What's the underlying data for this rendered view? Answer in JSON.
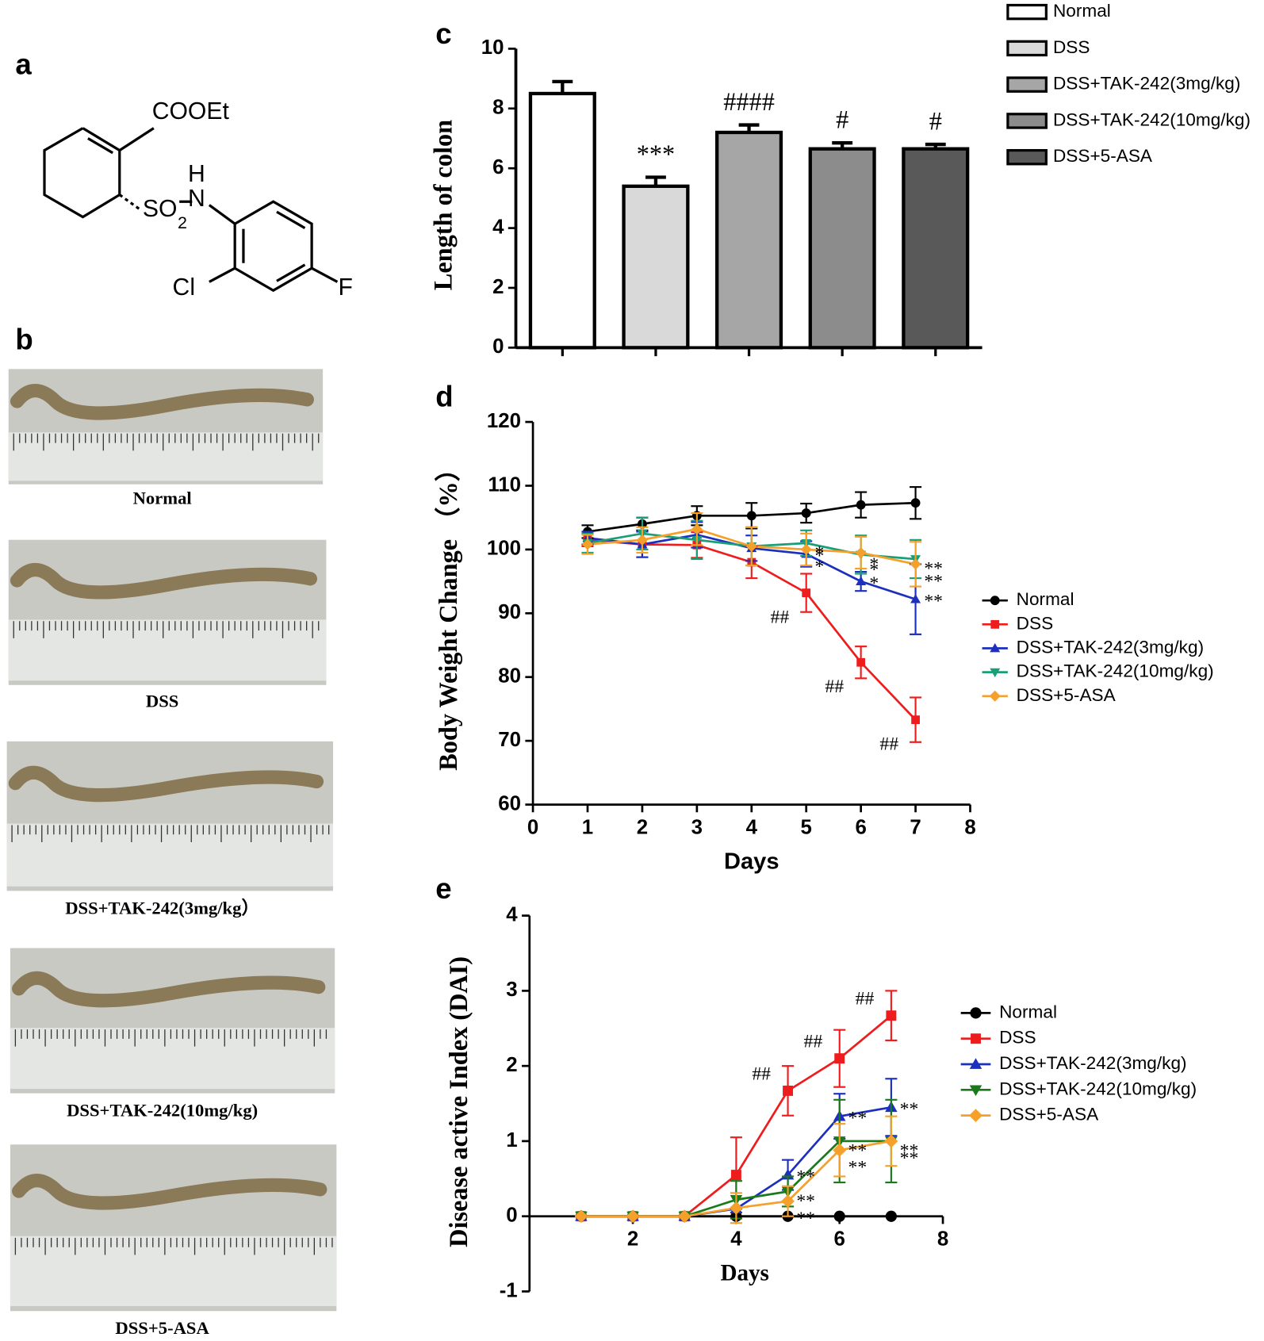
{
  "panel_labels": [
    "a",
    "b"
  ],
  "structure": {
    "labels": [
      "COOEt",
      "H",
      "N",
      "SO",
      "2",
      "Cl",
      "F"
    ]
  },
  "photos": [
    "Normal",
    "DSS",
    "DSS+TAK-242(3mg/kg）",
    "DSS+TAK-242(10mg/kg)",
    "DSS+5-ASA"
  ],
  "chart_data": [
    {
      "type": "bar",
      "panel": "c",
      "y_label": "Length of colon",
      "ylim": [
        0,
        10
      ],
      "yticks": [
        0,
        2,
        4,
        6,
        8,
        10
      ],
      "series": [
        {
          "name": "Normal",
          "color": "#ffffff",
          "values": [
            8.5
          ],
          "errors": [
            0.4
          ],
          "point_labels": [
            null
          ]
        },
        {
          "name": "DSS",
          "color": "#d9d9d9",
          "values": [
            5.4
          ],
          "errors": [
            0.3
          ],
          "point_labels": [
            "***"
          ]
        },
        {
          "name": "DSS+TAK-242(3mg/kg)",
          "color": "#a6a6a6",
          "values": [
            7.2
          ],
          "errors": [
            0.25
          ],
          "point_labels": [
            "####"
          ]
        },
        {
          "name": "DSS+TAK-242(10mg/kg)",
          "color": "#8c8c8c",
          "values": [
            6.65
          ],
          "errors": [
            0.2
          ],
          "point_labels": [
            "#"
          ]
        },
        {
          "name": "DSS+5-ASA",
          "color": "#595959",
          "values": [
            6.65
          ],
          "errors": [
            0.15
          ],
          "point_labels": [
            "#"
          ]
        }
      ]
    },
    {
      "type": "line",
      "panel": "d",
      "x_label": "Days",
      "y_label": "Body Weight Change （%）",
      "x": [
        1,
        2,
        3,
        4,
        5,
        6,
        7
      ],
      "xlim": [
        0,
        8
      ],
      "xticks": [
        0,
        1,
        2,
        3,
        4,
        5,
        6,
        7,
        8
      ],
      "ylim": [
        60,
        120
      ],
      "yticks": [
        60,
        70,
        80,
        90,
        100,
        110,
        120
      ],
      "series": [
        {
          "name": "Normal",
          "color": "#000000",
          "marker": "circle",
          "values": [
            102.8,
            104,
            105.3,
            105.3,
            105.7,
            107,
            107.3
          ],
          "errors": [
            1,
            1,
            1.5,
            2,
            1.5,
            2,
            2.5
          ],
          "point_labels": [
            null,
            null,
            null,
            null,
            null,
            null,
            null
          ]
        },
        {
          "name": "DSS",
          "color": "#ee1c1c",
          "marker": "square",
          "values": [
            101.5,
            100.8,
            100.7,
            98,
            93.2,
            82.3,
            73.3
          ],
          "errors": [
            1,
            2,
            2,
            2.5,
            3,
            2.5,
            3.5
          ],
          "point_labels": [
            null,
            null,
            null,
            null,
            "##",
            "##",
            "##"
          ]
        },
        {
          "name": "DSS+TAK-242(3mg/kg)",
          "color": "#1c2fbf",
          "marker": "triangle-up",
          "values": [
            101.8,
            100.8,
            102.3,
            100.2,
            99.3,
            95,
            92.2
          ],
          "errors": [
            1,
            2,
            2,
            2,
            2,
            1.5,
            5.5
          ],
          "point_labels": [
            null,
            null,
            null,
            null,
            "*",
            "*",
            "**"
          ]
        },
        {
          "name": "DSS+TAK-242(10mg/kg)",
          "color": "#1a9e77",
          "marker": "triangle-down",
          "values": [
            101,
            102.5,
            101.5,
            100.5,
            101,
            99.2,
            98.5
          ],
          "errors": [
            1.5,
            2.5,
            3,
            3,
            2,
            3,
            3
          ],
          "point_labels": [
            null,
            null,
            null,
            null,
            "*",
            "*",
            "**"
          ]
        },
        {
          "name": "DSS+5-ASA",
          "color": "#f5a02a",
          "marker": "diamond",
          "values": [
            100.8,
            101.5,
            103.2,
            100.5,
            100,
            99.5,
            97.7
          ],
          "errors": [
            1.5,
            2,
            2.5,
            3,
            2.5,
            2.5,
            3.5
          ],
          "point_labels": [
            null,
            null,
            null,
            null,
            "*",
            "*",
            "**"
          ]
        }
      ]
    },
    {
      "type": "line",
      "panel": "e",
      "x_label": "Days",
      "y_label": "Disease active Index (DAI)",
      "x": [
        1,
        2,
        3,
        4,
        5,
        6,
        7
      ],
      "xlim": [
        0,
        8
      ],
      "xticks": [
        2,
        4,
        6,
        8
      ],
      "ylim": [
        -1,
        4
      ],
      "yticks": [
        -1,
        0,
        1,
        2,
        3,
        4
      ],
      "series": [
        {
          "name": "Normal",
          "color": "#000000",
          "marker": "circle",
          "values": [
            0,
            0,
            0,
            0,
            0,
            0,
            0
          ],
          "errors": [
            0,
            0,
            0,
            0,
            0,
            0,
            0
          ],
          "point_labels": [
            null,
            null,
            null,
            null,
            null,
            null,
            null
          ]
        },
        {
          "name": "DSS",
          "color": "#ee1c1c",
          "marker": "square",
          "values": [
            0,
            0,
            0,
            0.55,
            1.67,
            2.1,
            2.67
          ],
          "errors": [
            0,
            0,
            0,
            0.5,
            0.33,
            0.38,
            0.33
          ],
          "point_labels": [
            null,
            null,
            null,
            null,
            "##",
            "##",
            "##"
          ]
        },
        {
          "name": "DSS+TAK-242(3mg/kg)",
          "color": "#1c2fbf",
          "marker": "triangle-up",
          "values": [
            0,
            0,
            0,
            0.1,
            0.55,
            1.33,
            1.45
          ],
          "errors": [
            0,
            0,
            0,
            0,
            0.2,
            0.3,
            0.38
          ],
          "point_labels": [
            null,
            null,
            null,
            null,
            "**",
            "**",
            "**"
          ]
        },
        {
          "name": "DSS+TAK-242(10mg/kg)",
          "color": "#1a7a1a",
          "marker": "triangle-down",
          "values": [
            0,
            0,
            0,
            0.22,
            0.33,
            1.0,
            1.0
          ],
          "errors": [
            0,
            0,
            0,
            0.25,
            0.2,
            0.55,
            0.55
          ],
          "point_labels": [
            null,
            null,
            null,
            null,
            "**",
            "**",
            "**"
          ]
        },
        {
          "name": "DSS+5-ASA",
          "color": "#f5a02a",
          "marker": "diamond",
          "values": [
            0,
            0,
            0,
            0.11,
            0.2,
            0.88,
            1.0
          ],
          "errors": [
            0,
            0,
            0,
            0.2,
            0.2,
            0.35,
            0.33
          ],
          "point_labels": [
            null,
            null,
            null,
            null,
            "**",
            "**",
            "**"
          ]
        }
      ]
    }
  ]
}
